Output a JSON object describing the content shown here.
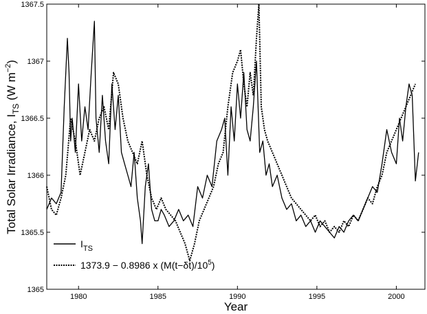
{
  "chart_data": {
    "type": "line",
    "title": "",
    "xlabel": "Year",
    "ylabel_main": "Total Solar Irradiance, I",
    "ylabel_sub": "TS",
    "ylabel_units_pre": " (W m",
    "ylabel_units_sup": "−2",
    "ylabel_units_post": ")",
    "xlim": [
      1978.0,
      2001.8
    ],
    "ylim": [
      1365,
      1367.5
    ],
    "x_ticks": [
      1980,
      1985,
      1990,
      1995,
      2000
    ],
    "x_tick_labels": [
      "1980",
      "1985",
      "1990",
      "1995",
      "2000"
    ],
    "y_ticks": [
      1365,
      1365.5,
      1366,
      1366.5,
      1367,
      1367.5
    ],
    "y_tick_labels": [
      "1365",
      "1365.5",
      "1366",
      "1366.5",
      "1367",
      "1367.5"
    ],
    "grid": false,
    "legend_position": "bottom-left",
    "legend": {
      "its_main": "I",
      "its_sub": "TS",
      "model_pre": "1373.9 − 0.8986 x (M(t−δt)/10",
      "model_sup": "5",
      "model_post": ")"
    },
    "series": [
      {
        "style": "solid",
        "color": "#000000",
        "x": [
          1978.0,
          1978.3,
          1978.6,
          1978.9,
          1979.1,
          1979.3,
          1979.4,
          1979.5,
          1979.6,
          1979.8,
          1980.0,
          1980.2,
          1980.4,
          1980.6,
          1980.8,
          1981.0,
          1981.1,
          1981.3,
          1981.5,
          1981.7,
          1981.9,
          1982.1,
          1982.3,
          1982.5,
          1982.7,
          1982.9,
          1983.1,
          1983.3,
          1983.5,
          1983.7,
          1983.9,
          1984.0,
          1984.2,
          1984.4,
          1984.6,
          1984.8,
          1985.0,
          1985.2,
          1985.4,
          1985.7,
          1986.0,
          1986.3,
          1986.6,
          1986.9,
          1987.2,
          1987.5,
          1987.8,
          1988.1,
          1988.4,
          1988.7,
          1989.0,
          1989.2,
          1989.4,
          1989.6,
          1989.8,
          1990.0,
          1990.2,
          1990.4,
          1990.6,
          1990.8,
          1991.0,
          1991.2,
          1991.4,
          1991.6,
          1991.8,
          1992.0,
          1992.2,
          1992.5,
          1992.8,
          1993.1,
          1993.4,
          1993.7,
          1994.0,
          1994.3,
          1994.6,
          1994.9,
          1995.2,
          1995.5,
          1995.8,
          1996.1,
          1996.4,
          1996.7,
          1997.0,
          1997.3,
          1997.6,
          1997.9,
          1998.2,
          1998.5,
          1998.8,
          1999.1,
          1999.4,
          1999.7,
          2000.0,
          2000.2,
          2000.4,
          2000.6,
          2000.8,
          2001.0,
          2001.2,
          2001.4
        ],
        "y": [
          1365.7,
          1365.8,
          1365.75,
          1365.85,
          1366.6,
          1367.2,
          1366.9,
          1366.3,
          1366.5,
          1366.2,
          1366.8,
          1366.3,
          1366.6,
          1366.4,
          1366.9,
          1367.35,
          1366.5,
          1366.2,
          1366.7,
          1366.3,
          1366.1,
          1366.8,
          1366.4,
          1366.7,
          1366.2,
          1366.1,
          1366.0,
          1365.9,
          1366.2,
          1365.8,
          1365.6,
          1365.4,
          1365.9,
          1366.1,
          1365.7,
          1365.6,
          1365.6,
          1365.7,
          1365.65,
          1365.55,
          1365.6,
          1365.7,
          1365.6,
          1365.65,
          1365.55,
          1365.9,
          1365.8,
          1366.0,
          1365.9,
          1366.3,
          1366.4,
          1366.5,
          1366.0,
          1366.6,
          1366.3,
          1366.8,
          1366.5,
          1366.9,
          1366.4,
          1366.3,
          1366.6,
          1367.0,
          1366.2,
          1366.3,
          1366.0,
          1366.1,
          1365.9,
          1366.0,
          1365.8,
          1365.7,
          1365.75,
          1365.6,
          1365.65,
          1365.55,
          1365.6,
          1365.5,
          1365.6,
          1365.55,
          1365.5,
          1365.45,
          1365.55,
          1365.5,
          1365.6,
          1365.65,
          1365.6,
          1365.7,
          1365.8,
          1365.9,
          1365.85,
          1366.1,
          1366.4,
          1366.2,
          1366.1,
          1366.5,
          1366.3,
          1366.6,
          1366.8,
          1366.7,
          1365.95,
          1366.2
        ]
      },
      {
        "style": "dotted",
        "color": "#000000",
        "x": [
          1978.0,
          1978.3,
          1978.6,
          1978.9,
          1979.2,
          1979.5,
          1979.8,
          1980.1,
          1980.4,
          1980.7,
          1981.0,
          1981.3,
          1981.6,
          1981.9,
          1982.2,
          1982.5,
          1982.8,
          1983.1,
          1983.4,
          1983.7,
          1984.0,
          1984.3,
          1984.6,
          1984.9,
          1985.2,
          1985.5,
          1985.8,
          1986.1,
          1986.4,
          1986.7,
          1987.0,
          1987.3,
          1987.6,
          1987.9,
          1988.2,
          1988.5,
          1988.8,
          1989.1,
          1989.4,
          1989.7,
          1990.0,
          1990.2,
          1990.4,
          1990.6,
          1990.8,
          1991.0,
          1991.2,
          1991.35,
          1991.5,
          1991.7,
          1991.9,
          1992.2,
          1992.5,
          1992.8,
          1993.1,
          1993.4,
          1993.7,
          1994.0,
          1994.3,
          1994.6,
          1994.9,
          1995.2,
          1995.5,
          1995.8,
          1996.1,
          1996.4,
          1996.7,
          1997.0,
          1997.3,
          1997.6,
          1997.9,
          1998.2,
          1998.5,
          1998.8,
          1999.1,
          1999.4,
          1999.7,
          2000.0,
          2000.3,
          2000.6,
          2000.9,
          2001.2
        ],
        "y": [
          1365.9,
          1365.7,
          1365.65,
          1365.8,
          1366.0,
          1366.5,
          1366.3,
          1366.0,
          1366.2,
          1366.4,
          1366.3,
          1366.5,
          1366.6,
          1366.4,
          1366.9,
          1366.8,
          1366.5,
          1366.3,
          1366.2,
          1366.1,
          1366.3,
          1366.0,
          1365.8,
          1365.7,
          1365.8,
          1365.7,
          1365.65,
          1365.6,
          1365.5,
          1365.4,
          1365.25,
          1365.4,
          1365.6,
          1365.7,
          1365.8,
          1365.9,
          1366.1,
          1366.2,
          1366.6,
          1366.9,
          1367.0,
          1367.1,
          1366.8,
          1366.6,
          1366.9,
          1366.7,
          1367.2,
          1367.5,
          1366.6,
          1366.4,
          1366.3,
          1366.2,
          1366.1,
          1366.0,
          1365.9,
          1365.8,
          1365.75,
          1365.7,
          1365.65,
          1365.6,
          1365.65,
          1365.55,
          1365.6,
          1365.5,
          1365.55,
          1365.5,
          1365.6,
          1365.55,
          1365.65,
          1365.6,
          1365.7,
          1365.8,
          1365.75,
          1365.9,
          1366.0,
          1366.2,
          1366.3,
          1366.4,
          1366.5,
          1366.6,
          1366.7,
          1366.8
        ]
      }
    ]
  }
}
